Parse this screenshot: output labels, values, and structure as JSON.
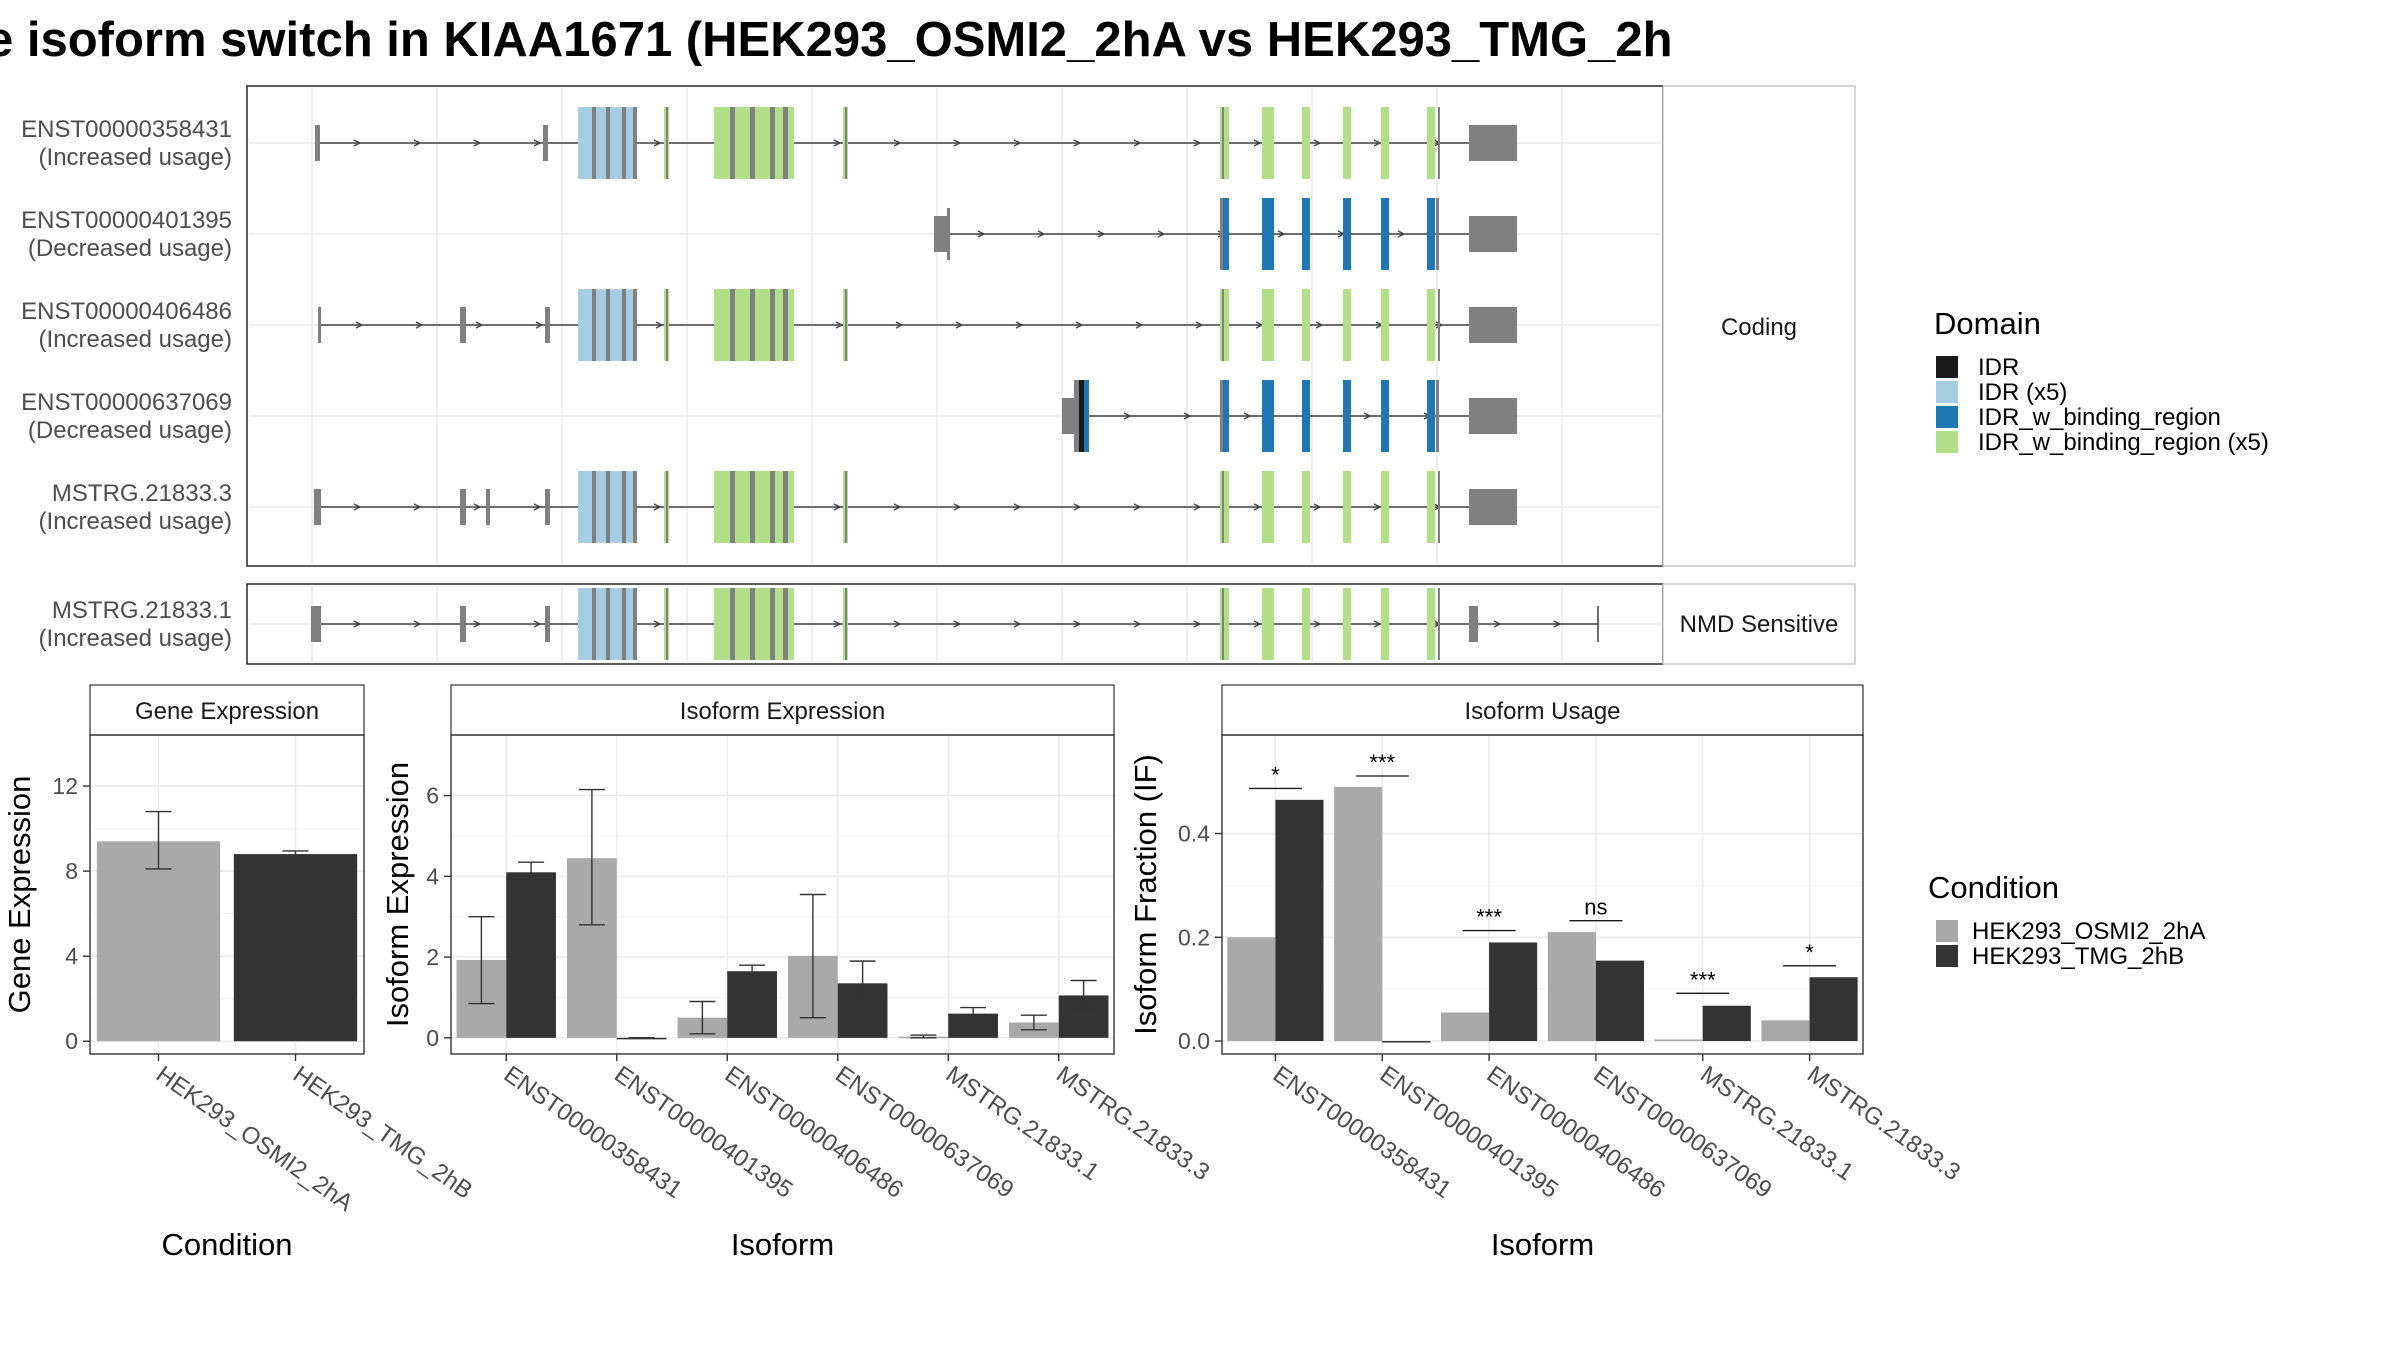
{
  "title": "e isoform switch in KIAA1671 (HEK293_OSMI2_2hA vs HEK293_TMG_2h",
  "colors": {
    "IDR": "#1a1a1a",
    "IDR_x5": "#a6cee3",
    "IDR_w_binding_region": "#1f78b4",
    "IDR_w_binding_region_x5": "#b2df8a",
    "exon": "#808080",
    "cond_a": "#a9a9a9",
    "cond_b": "#333333"
  },
  "transcripts": [
    {
      "id": "ENST00000358431",
      "usage": "(Increased usage)",
      "group": "Coding"
    },
    {
      "id": "ENST00000401395",
      "usage": "(Decreased usage)",
      "group": "Coding"
    },
    {
      "id": "ENST00000406486",
      "usage": "(Increased usage)",
      "group": "Coding"
    },
    {
      "id": "ENST00000637069",
      "usage": "(Decreased usage)",
      "group": "Coding"
    },
    {
      "id": "MSTRG.21833.3",
      "usage": "(Increased usage)",
      "group": "Coding"
    },
    {
      "id": "MSTRG.21833.1",
      "usage": "(Increased usage)",
      "group": "NMD Sensitive"
    }
  ],
  "strips": {
    "coding": "Coding",
    "nmd": "NMD Sensitive"
  },
  "legend_domain": {
    "title": "Domain",
    "items": [
      {
        "label": "IDR",
        "color": "#1a1a1a"
      },
      {
        "label": "IDR (x5)",
        "color": "#a6cee3"
      },
      {
        "label": "IDR_w_binding_region",
        "color": "#1f78b4"
      },
      {
        "label": "IDR_w_binding_region (x5)",
        "color": "#b2df8a"
      }
    ]
  },
  "legend_condition": {
    "title": "Condition",
    "items": [
      {
        "label": "HEK293_OSMI2_2hA",
        "color": "#a9a9a9"
      },
      {
        "label": "HEK293_TMG_2hB",
        "color": "#333333"
      }
    ]
  },
  "chart_data": [
    {
      "type": "bar",
      "title": "Gene Expression",
      "xlabel": "Condition",
      "ylabel": "Gene Expression",
      "categories": [
        "HEK293_OSMI2_2hA",
        "HEK293_TMG_2hB"
      ],
      "values": [
        9.4,
        8.8
      ],
      "err_low": [
        8.1,
        8.7
      ],
      "err_high": [
        10.8,
        8.95
      ],
      "ylim": [
        -0.6,
        14.4
      ],
      "yticks": [
        0,
        4,
        8,
        12
      ]
    },
    {
      "type": "bar",
      "title": "Isoform Expression",
      "xlabel": "Isoform",
      "ylabel": "Isoform Expression",
      "categories": [
        "ENST00000358431",
        "ENST00000401395",
        "ENST00000406486",
        "ENST00000637069",
        "MSTRG.21833.1",
        "MSTRG.21833.3"
      ],
      "series": [
        {
          "name": "HEK293_OSMI2_2hA",
          "values": [
            1.93,
            4.45,
            0.5,
            2.03,
            0.03,
            0.38
          ],
          "err_low": [
            0.85,
            2.8,
            0.1,
            0.5,
            0.0,
            0.2
          ],
          "err_high": [
            3.0,
            6.15,
            0.9,
            3.55,
            0.07,
            0.56
          ]
        },
        {
          "name": "HEK293_TMG_2hB",
          "values": [
            4.1,
            0.0,
            1.65,
            1.35,
            0.6,
            1.05
          ],
          "err_low": [
            3.85,
            0.0,
            1.55,
            0.8,
            0.45,
            0.7
          ],
          "err_high": [
            4.35,
            0.0,
            1.8,
            1.9,
            0.75,
            1.42
          ]
        }
      ],
      "ylim": [
        -0.4,
        7.5
      ],
      "yticks": [
        0,
        2,
        4,
        6
      ]
    },
    {
      "type": "bar",
      "title": "Isoform Usage",
      "xlabel": "Isoform",
      "ylabel": "Isoform Fraction (IF)",
      "categories": [
        "ENST00000358431",
        "ENST00000401395",
        "ENST00000406486",
        "ENST00000637069",
        "MSTRG.21833.1",
        "MSTRG.21833.3"
      ],
      "series": [
        {
          "name": "HEK293_OSMI2_2hA",
          "values": [
            0.2,
            0.49,
            0.055,
            0.21,
            0.003,
            0.04
          ]
        },
        {
          "name": "HEK293_TMG_2hB",
          "values": [
            0.465,
            0.0,
            0.19,
            0.155,
            0.068,
            0.123
          ]
        }
      ],
      "significance": [
        "*",
        "***",
        "***",
        "ns",
        "***",
        "*"
      ],
      "sig_height": [
        0.487,
        0.511,
        0.213,
        0.232,
        0.092,
        0.145
      ],
      "ylim": [
        -0.025,
        0.59
      ],
      "yticks": [
        0.0,
        0.2,
        0.4
      ],
      "ytick_labels": [
        "0.0",
        "0.2",
        "0.4"
      ]
    }
  ]
}
